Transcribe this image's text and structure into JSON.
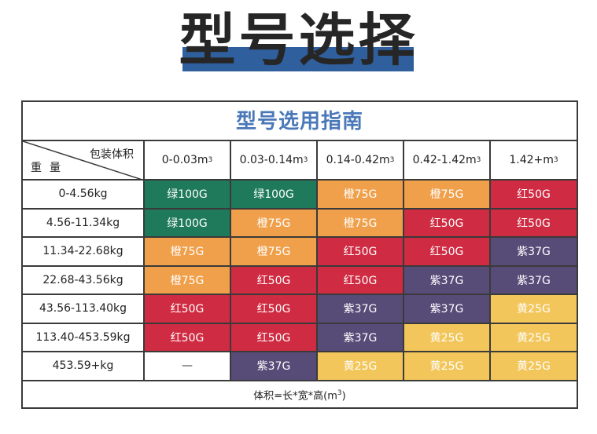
{
  "heading": {
    "title": "型号选择"
  },
  "table": {
    "title": "型号选用指南",
    "corner_top": "包装体积",
    "corner_bottom": "重量",
    "columns": [
      {
        "base": "0-0.03m",
        "sup": "3"
      },
      {
        "base": "0.03-0.14m",
        "sup": "3"
      },
      {
        "base": "0.14-0.42m",
        "sup": "3"
      },
      {
        "base": "0.42-1.42m",
        "sup": "3"
      },
      {
        "base": "1.42+m",
        "sup": "3"
      }
    ],
    "rows": [
      {
        "weight": "0-4.56kg",
        "cells": [
          "绿100G",
          "绿100G",
          "橙75G",
          "橙75G",
          "红50G"
        ]
      },
      {
        "weight": "4.56-11.34kg",
        "cells": [
          "绿100G",
          "橙75G",
          "橙75G",
          "红50G",
          "红50G"
        ]
      },
      {
        "weight": "11.34-22.68kg",
        "cells": [
          "橙75G",
          "橙75G",
          "红50G",
          "红50G",
          "紫37G"
        ]
      },
      {
        "weight": "22.68-43.56kg",
        "cells": [
          "橙75G",
          "红50G",
          "红50G",
          "紫37G",
          "紫37G"
        ]
      },
      {
        "weight": "43.56-113.40kg",
        "cells": [
          "红50G",
          "红50G",
          "紫37G",
          "紫37G",
          "黄25G"
        ]
      },
      {
        "weight": "113.40-453.59kg",
        "cells": [
          "红50G",
          "红50G",
          "紫37G",
          "黄25G",
          "黄25G"
        ]
      },
      {
        "weight": "453.59+kg",
        "cells": [
          "—",
          "紫37G",
          "黄25G",
          "黄25G",
          "黄25G"
        ]
      }
    ],
    "footer": {
      "base": "体积=长*宽*高(m",
      "sup": "3",
      "tail": ")"
    }
  },
  "colors": {
    "绿100G": "#1f7a5c",
    "橙75G": "#f0a04b",
    "红50G": "#cf2b42",
    "紫37G": "#574b78",
    "黄25G": "#f2c65a",
    "—": "#ffffff",
    "title_blue": "#4a78b8",
    "heading_bar": "#2f5f9c"
  }
}
